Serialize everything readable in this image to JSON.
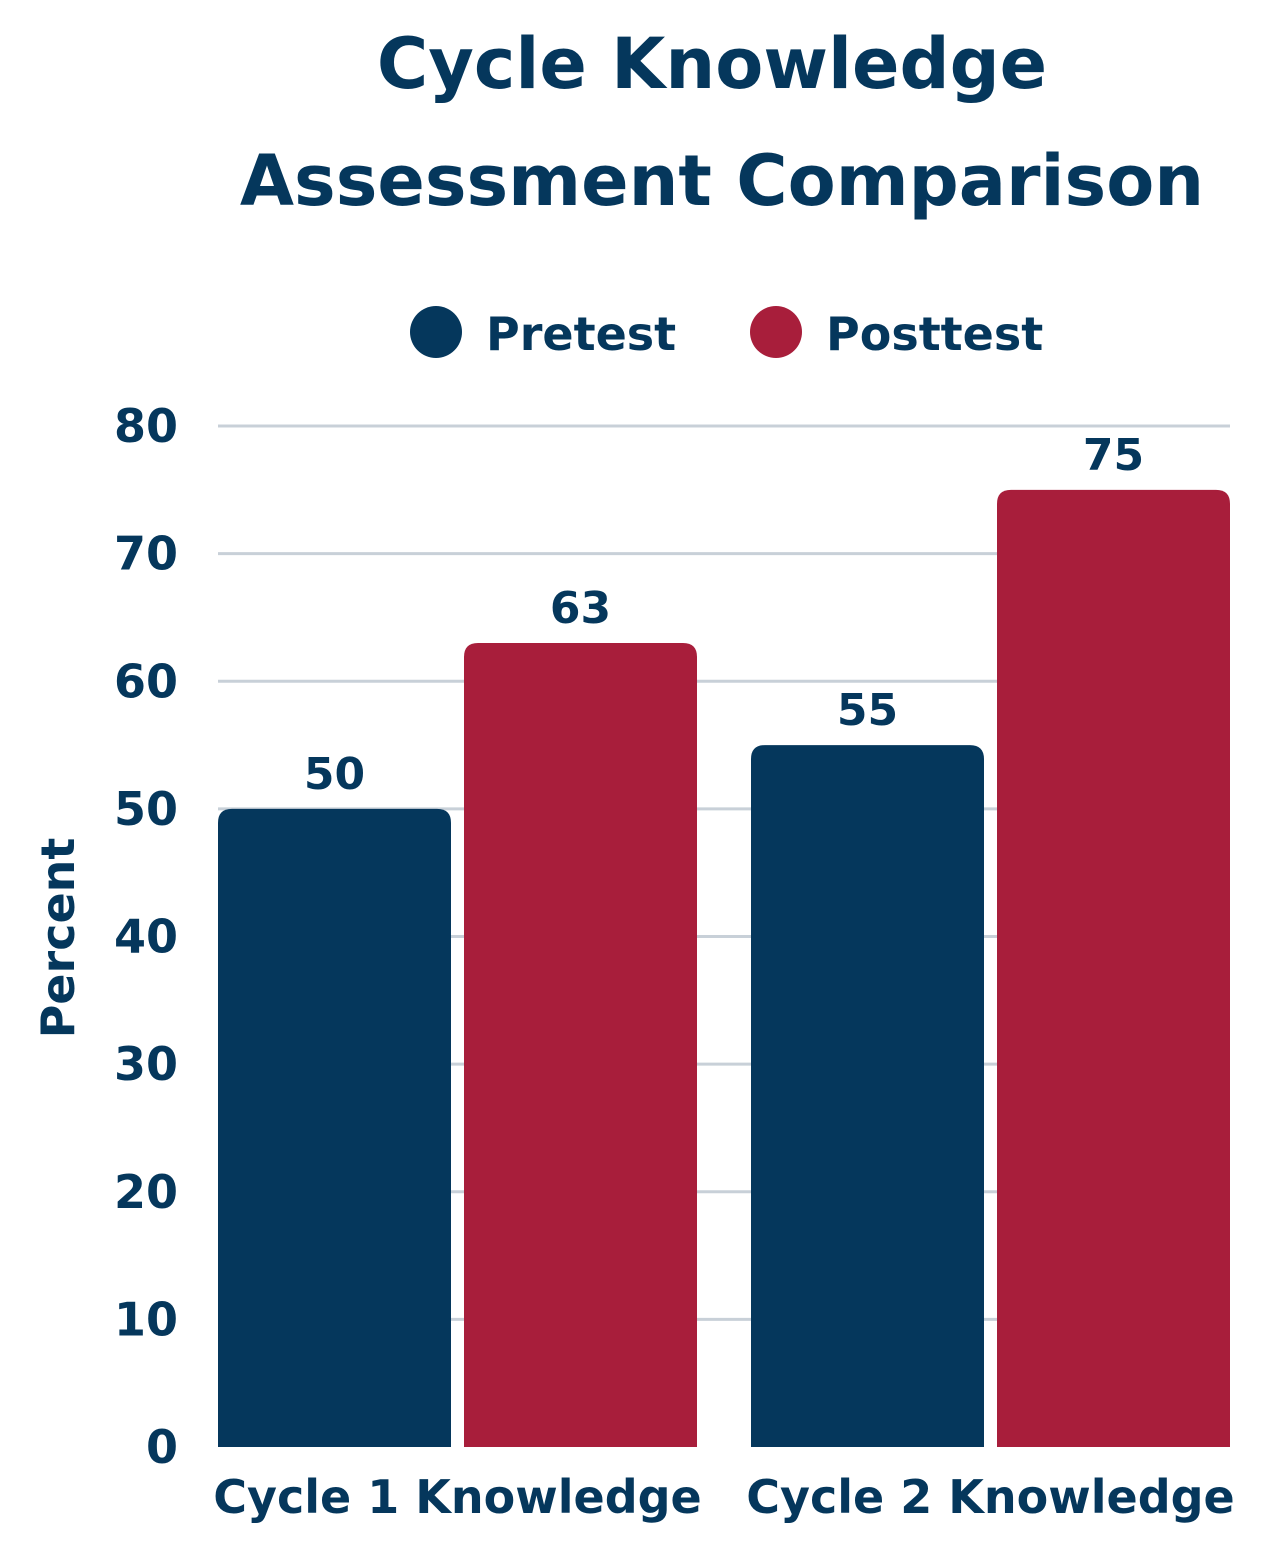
{
  "chart_data": {
    "type": "bar",
    "title_lines": [
      "Cycle Knowledge",
      "Assessment Comparison"
    ],
    "categories": [
      "Cycle 1 Knowledge",
      "Cycle 2 Knowledge"
    ],
    "series": [
      {
        "name": "Pretest",
        "values": [
          50,
          55
        ],
        "color": "#05375c"
      },
      {
        "name": "Posttest",
        "values": [
          63,
          75
        ],
        "color": "#a81e3b"
      }
    ],
    "ylabel": "Percent",
    "ylim": [
      0,
      80
    ],
    "yticks": [
      0,
      10,
      20,
      30,
      40,
      50,
      60,
      70,
      80
    ],
    "grid": true,
    "legend_position": "top"
  }
}
